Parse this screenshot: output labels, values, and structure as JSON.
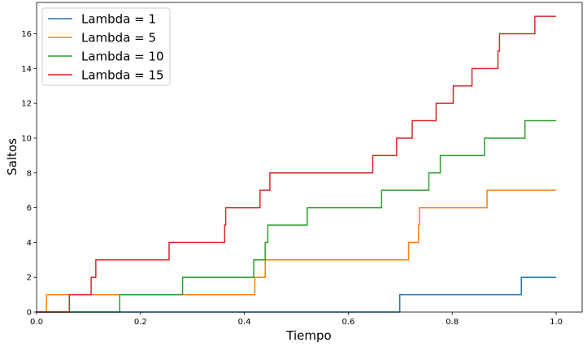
{
  "chart_data": {
    "type": "line",
    "step": "post",
    "xlabel": "Tiempo",
    "ylabel": "Saltos",
    "xlim": [
      0,
      1.05
    ],
    "ylim": [
      0,
      17.8
    ],
    "grid": false,
    "legend_position": "top-left",
    "xticks": [
      0.0,
      0.2,
      0.4,
      0.6,
      0.8,
      1.0
    ],
    "xtick_labels": [
      "0.0",
      "0.2",
      "0.4",
      "0.6",
      "0.8",
      "1.0"
    ],
    "yticks": [
      0,
      2,
      4,
      6,
      8,
      10,
      12,
      14,
      16
    ],
    "ytick_labels": [
      "0",
      "2",
      "4",
      "6",
      "8",
      "10",
      "12",
      "14",
      "16"
    ],
    "series": [
      {
        "name": "Lambda = 1",
        "color": "#1f77b4",
        "x": [
          0,
          0.699,
          0.933,
          1.0
        ],
        "y": [
          0,
          1,
          2,
          2
        ]
      },
      {
        "name": "Lambda = 5",
        "color": "#ff7f0e",
        "x": [
          0,
          0.019,
          0.42,
          0.44,
          0.716,
          0.735,
          0.737,
          0.867,
          1.0
        ],
        "y": [
          0,
          1,
          2,
          3,
          4,
          5,
          6,
          7,
          7
        ]
      },
      {
        "name": "Lambda = 10",
        "color": "#2ca02c",
        "x": [
          0,
          0.16,
          0.281,
          0.418,
          0.44,
          0.445,
          0.521,
          0.664,
          0.755,
          0.777,
          0.862,
          0.94,
          1.0
        ],
        "y": [
          0,
          1,
          2,
          3,
          4,
          5,
          6,
          7,
          8,
          9,
          10,
          11,
          11
        ]
      },
      {
        "name": "Lambda = 15",
        "color": "#d62728",
        "x": [
          0,
          0.063,
          0.105,
          0.11,
          0.114,
          0.255,
          0.362,
          0.364,
          0.43,
          0.449,
          0.647,
          0.693,
          0.723,
          0.769,
          0.802,
          0.838,
          0.888,
          0.891,
          0.959,
          1.0
        ],
        "y": [
          0,
          1,
          2,
          2,
          3,
          4,
          5,
          6,
          7,
          8,
          9,
          10,
          11,
          12,
          13,
          14,
          15,
          16,
          17,
          17
        ]
      }
    ]
  }
}
